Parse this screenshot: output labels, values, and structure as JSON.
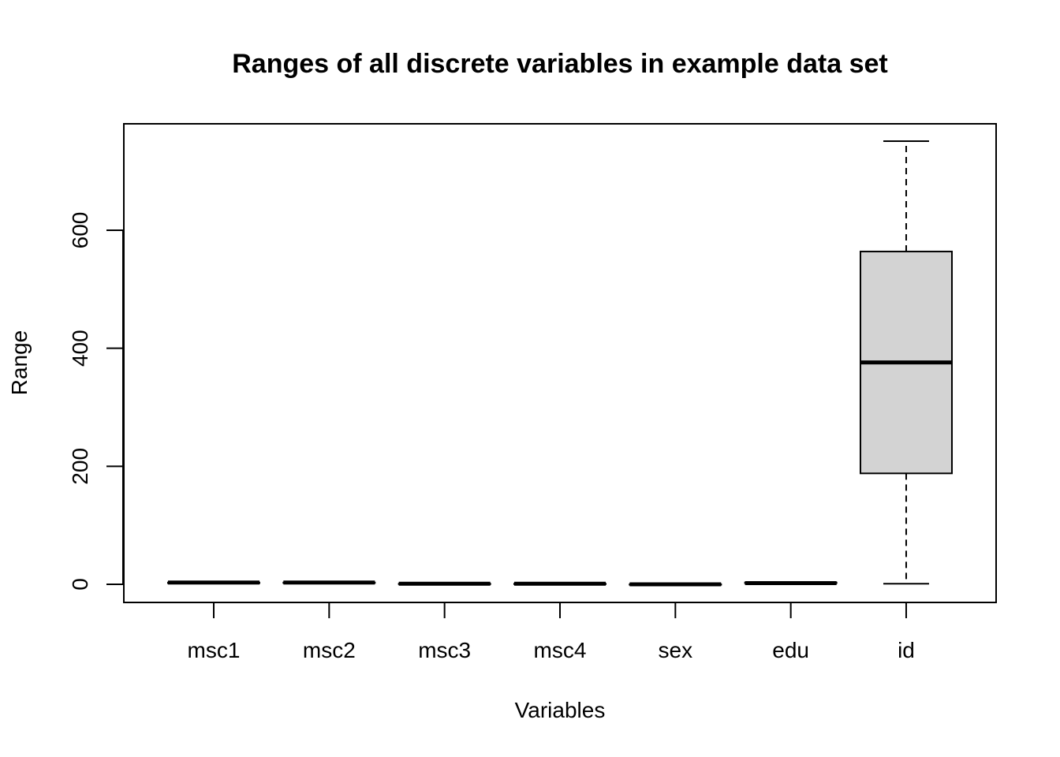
{
  "chart_data": {
    "type": "boxplot",
    "title": "Ranges of all discrete variables in example data set",
    "xlabel": "Variables",
    "ylabel": "Range",
    "categories": [
      "msc1",
      "msc2",
      "msc3",
      "msc4",
      "sex",
      "edu",
      "id"
    ],
    "yticks": [
      0,
      200,
      400,
      600
    ],
    "ylim": [
      -30,
      780
    ],
    "grid": false,
    "legend": "none",
    "box_fill": "#d3d3d3",
    "boxes": [
      {
        "name": "msc1",
        "min": 2,
        "q1": 2,
        "median": 3,
        "q3": 3,
        "max": 4
      },
      {
        "name": "msc2",
        "min": 2,
        "q1": 3,
        "median": 3,
        "q3": 3,
        "max": 4
      },
      {
        "name": "msc3",
        "min": 0,
        "q1": 1,
        "median": 1,
        "q3": 1,
        "max": 2
      },
      {
        "name": "msc4",
        "min": 0,
        "q1": 1,
        "median": 1,
        "q3": 1,
        "max": 2
      },
      {
        "name": "sex",
        "min": 0,
        "q1": 0,
        "median": 0,
        "q3": 0,
        "max": 1
      },
      {
        "name": "edu",
        "min": 1,
        "q1": 2,
        "median": 2,
        "q3": 3,
        "max": 4
      },
      {
        "name": "id",
        "min": 1,
        "q1": 188,
        "median": 376,
        "q3": 564,
        "max": 751
      }
    ]
  }
}
